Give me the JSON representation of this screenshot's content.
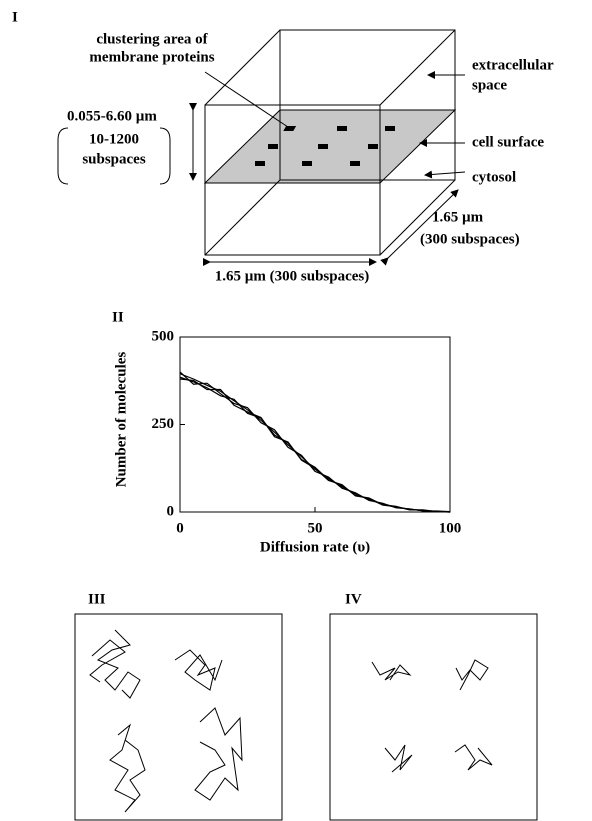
{
  "panels": {
    "labels": [
      "I",
      "II",
      "III",
      "IV"
    ]
  },
  "diagram": {
    "cluster_label": [
      "clustering area of",
      "membrane proteins"
    ],
    "extracellular": [
      "extracellular",
      "space"
    ],
    "height_label": [
      "0.055-6.60 µm",
      "10-1200",
      "subspaces"
    ],
    "cell_surface": "cell surface",
    "cytosol": "cytosol",
    "depth_label": [
      "1.65 µm",
      "(300 subspaces)"
    ],
    "width_label": "1.65 µm (300 subspaces)"
  },
  "chart_data": {
    "type": "line",
    "x_label": "Diffusion rate (υ)",
    "y_label": "Number of molecules",
    "x": [
      0,
      5,
      10,
      15,
      20,
      25,
      30,
      35,
      40,
      45,
      50,
      55,
      60,
      65,
      70,
      75,
      80,
      85,
      90,
      95,
      100
    ],
    "series": [
      {
        "color": "#000000",
        "values": [
          395,
          380,
          362,
          345,
          318,
          292,
          262,
          228,
          192,
          158,
          122,
          96,
          72,
          52,
          36,
          23,
          14,
          8,
          4,
          2,
          0
        ]
      },
      {
        "color": "#000000",
        "values": [
          385,
          372,
          355,
          332,
          322,
          282,
          268,
          220,
          198,
          150,
          128,
          92,
          75,
          48,
          38,
          20,
          15,
          7,
          5,
          1,
          0
        ]
      },
      {
        "color": "#000000",
        "values": [
          400,
          365,
          368,
          338,
          310,
          298,
          255,
          235,
          185,
          162,
          116,
          100,
          68,
          55,
          33,
          25,
          12,
          9,
          3,
          3,
          1
        ]
      },
      {
        "color": "#000000",
        "values": [
          380,
          376,
          350,
          350,
          305,
          286,
          270,
          215,
          200,
          148,
          125,
          90,
          78,
          46,
          40,
          21,
          16,
          6,
          6,
          1,
          0
        ]
      }
    ],
    "xlim": [
      0,
      100
    ],
    "ylim": [
      0,
      500
    ],
    "xticks": [
      0,
      50,
      100
    ],
    "yticks": [
      0,
      250,
      500
    ]
  }
}
